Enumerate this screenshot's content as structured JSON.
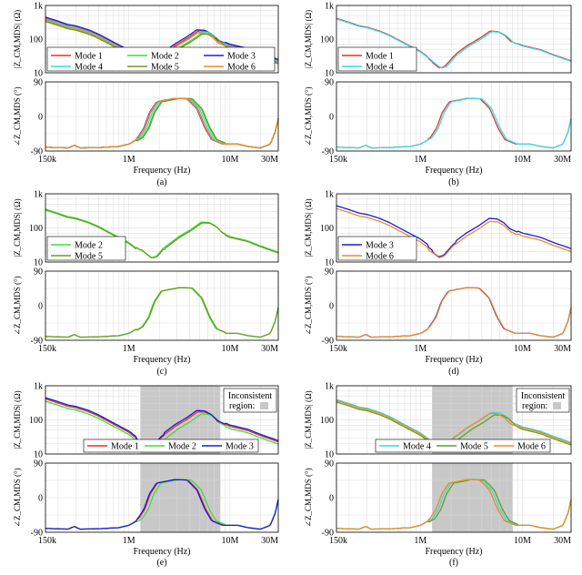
{
  "figure": {
    "xlabel": "Frequency (Hz)",
    "x_ticks": [
      {
        "label": "150k",
        "value": 150000
      },
      {
        "label": "1M",
        "value": 1000000
      },
      {
        "label": "10M",
        "value": 10000000
      },
      {
        "label": "30M",
        "value": 30000000
      }
    ],
    "mag_ticks": [
      {
        "label": "10",
        "value": 10
      },
      {
        "label": "100",
        "value": 100
      },
      {
        "label": "1k",
        "value": 1000
      }
    ],
    "phase_ticks": [
      {
        "label": "-90",
        "value": -90
      },
      {
        "label": "0",
        "value": 0
      },
      {
        "label": "90",
        "value": 90
      }
    ],
    "mag_ylabel": "|Z_CM,MDS| (Ω)",
    "phase_ylabel": "∠Z_CM,MDS (°)",
    "inconsistent_label_line1": "Inconsistent",
    "inconsistent_label_line2": "region:",
    "mode_colors": {
      "Mode 1": "#e8312c",
      "Mode 2": "#3adf3a",
      "Mode 3": "#1a1adf",
      "Mode 4": "#33dede",
      "Mode 5": "#6a9e1e",
      "Mode 6": "#f08a24"
    }
  },
  "chart_data": [
    {
      "type": "line",
      "panel": "(a)",
      "xscale": "log",
      "xlim": [
        150000,
        30000000
      ],
      "mag_ylim": [
        10,
        1000
      ],
      "phase_ylim": [
        -90,
        90
      ],
      "series": [
        "Mode 1",
        "Mode 2",
        "Mode 3",
        "Mode 4",
        "Mode 5",
        "Mode 6"
      ],
      "legend": "bottom-left, 3 columns",
      "shaded_region": null
    },
    {
      "type": "line",
      "panel": "(b)",
      "xscale": "log",
      "xlim": [
        150000,
        30000000
      ],
      "mag_ylim": [
        10,
        1000
      ],
      "phase_ylim": [
        -90,
        90
      ],
      "series": [
        "Mode 1",
        "Mode 4"
      ],
      "legend": "bottom-left",
      "shaded_region": null
    },
    {
      "type": "line",
      "panel": "(c)",
      "xscale": "log",
      "xlim": [
        150000,
        30000000
      ],
      "mag_ylim": [
        10,
        1000
      ],
      "phase_ylim": [
        -90,
        90
      ],
      "series": [
        "Mode 2",
        "Mode 5"
      ],
      "legend": "bottom-left",
      "shaded_region": null
    },
    {
      "type": "line",
      "panel": "(d)",
      "xscale": "log",
      "xlim": [
        150000,
        30000000
      ],
      "mag_ylim": [
        10,
        1000
      ],
      "phase_ylim": [
        -90,
        90
      ],
      "series": [
        "Mode 3",
        "Mode 6"
      ],
      "legend": "bottom-left",
      "shaded_region": null
    },
    {
      "type": "line",
      "panel": "(e)",
      "xscale": "log",
      "xlim": [
        150000,
        30000000
      ],
      "mag_ylim": [
        10,
        1000
      ],
      "phase_ylim": [
        -90,
        90
      ],
      "series": [
        "Mode 1",
        "Mode 2",
        "Mode 3"
      ],
      "legend": "bottom, 1 row",
      "shaded_region": [
        1300000,
        8000000
      ]
    },
    {
      "type": "line",
      "panel": "(f)",
      "xscale": "log",
      "xlim": [
        150000,
        30000000
      ],
      "mag_ylim": [
        10,
        1000
      ],
      "phase_ylim": [
        -90,
        90
      ],
      "series": [
        "Mode 4",
        "Mode 5",
        "Mode 6"
      ],
      "legend": "bottom, 1 row",
      "shaded_region": [
        1300000,
        8000000
      ]
    }
  ],
  "curves": {
    "mag_base": [
      [
        150000,
        380
      ],
      [
        200000,
        290
      ],
      [
        250000,
        230
      ],
      [
        300000,
        210
      ],
      [
        400000,
        160
      ],
      [
        500000,
        120
      ],
      [
        700000,
        70
      ],
      [
        1000000,
        40
      ],
      [
        1300000,
        22
      ],
      [
        1600000,
        13.5
      ],
      [
        1800000,
        15
      ],
      [
        2200000,
        30
      ],
      [
        3000000,
        60
      ],
      [
        4000000,
        100
      ],
      [
        5000000,
        160
      ],
      [
        6000000,
        155
      ],
      [
        7000000,
        120
      ],
      [
        8000000,
        80
      ],
      [
        10000000,
        60
      ],
      [
        15000000,
        45
      ],
      [
        20000000,
        32
      ],
      [
        30000000,
        21
      ]
    ],
    "phase_base": [
      [
        150000,
        -80
      ],
      [
        250000,
        -82
      ],
      [
        290000,
        -75
      ],
      [
        330000,
        -82
      ],
      [
        500000,
        -81
      ],
      [
        800000,
        -78
      ],
      [
        1000000,
        -72
      ],
      [
        1300000,
        -55
      ],
      [
        1500000,
        -30
      ],
      [
        1700000,
        10
      ],
      [
        2000000,
        38
      ],
      [
        3000000,
        47
      ],
      [
        4000000,
        46
      ],
      [
        5000000,
        20
      ],
      [
        6000000,
        -30
      ],
      [
        7000000,
        -60
      ],
      [
        9000000,
        -72
      ],
      [
        12000000,
        -72
      ],
      [
        15000000,
        -78
      ],
      [
        20000000,
        -82
      ],
      [
        25000000,
        -72
      ],
      [
        28000000,
        -40
      ],
      [
        30000000,
        -5
      ]
    ],
    "mag_factor": {
      "Mode 1": 1.08,
      "Mode 2": 0.93,
      "Mode 3": 1.18,
      "Mode 4": 1.04,
      "Mode 5": 0.88,
      "Mode 6": 0.97
    },
    "peak_shift": {
      "Mode 1": 0.96,
      "Mode 2": 1.04,
      "Mode 3": 0.94,
      "Mode 4": 1.0,
      "Mode 5": 1.06,
      "Mode 6": 0.95
    }
  },
  "captions": [
    "(a)",
    "(b)",
    "(c)",
    "(d)",
    "(e)",
    "(f)"
  ]
}
